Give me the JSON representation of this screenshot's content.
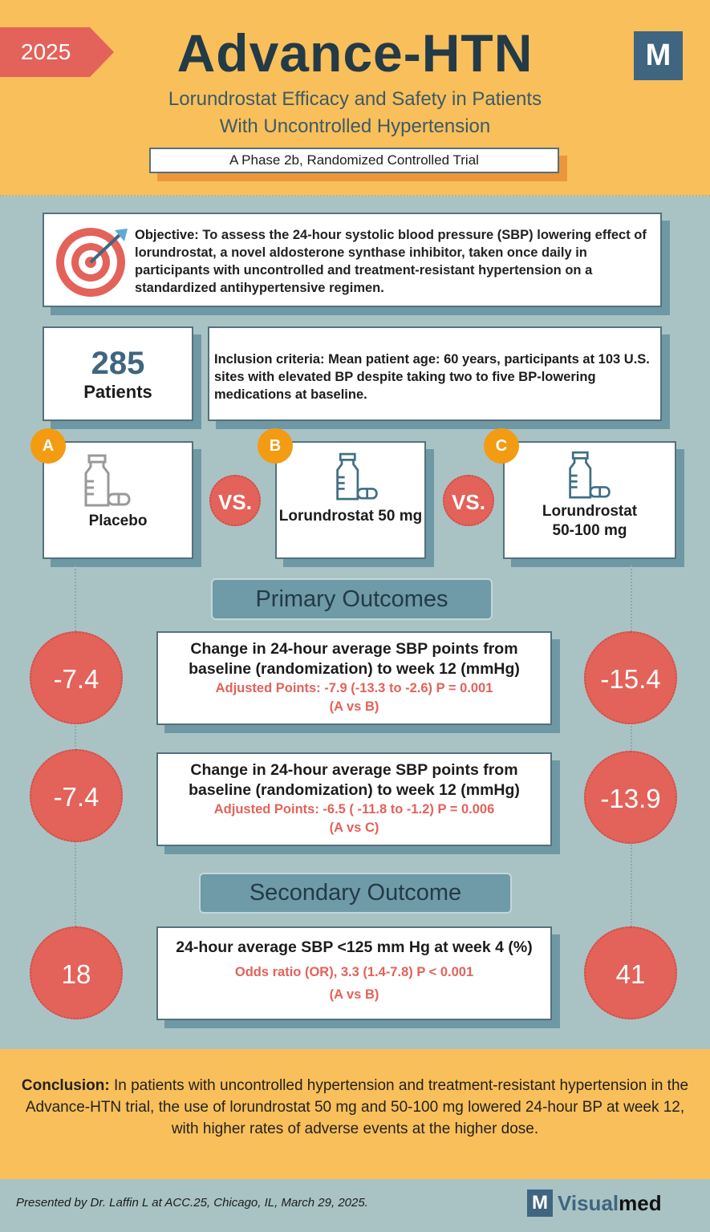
{
  "header": {
    "year": "2025",
    "title": "Advance-HTN",
    "subtitle_line1": "Lorundrostat Efficacy and Safety in Patients",
    "subtitle_line2": "With Uncontrolled Hypertension",
    "trial_type": "A Phase 2b, Randomized Controlled Trial",
    "logo_letter": "M"
  },
  "objective": {
    "label": "Objective:",
    "text": "To assess the 24-hour systolic blood pressure (SBP) lowering effect of lorundrostat, a novel aldosterone synthase inhibitor, taken once daily in participants with uncontrolled and treatment-resistant hypertension on a standardized antihypertensive regimen.",
    "icon": "target-icon"
  },
  "patients": {
    "count": "285",
    "label": "Patients"
  },
  "inclusion": {
    "label": "Inclusion criteria:",
    "text": "Mean patient age: 60 years, participants at 103 U.S. sites with elevated BP despite taking two to five BP-lowering medications at baseline."
  },
  "arms": [
    {
      "badge": "A",
      "label": "Placebo",
      "icon": "medicine-bottle-icon"
    },
    {
      "badge": "B",
      "label": "Lorundrostat 50 mg",
      "icon": "medicine-bottle-icon"
    },
    {
      "badge": "C",
      "label": "Lorundrostat 50-100 mg",
      "icon": "medicine-bottle-icon"
    }
  ],
  "vs_label": "VS.",
  "primary": {
    "title": "Primary Outcomes",
    "items": [
      {
        "left": "-7.4",
        "right": "-15.4",
        "heading": "Change in 24-hour average SBP points from baseline (randomization) to week 12 (mmHg)",
        "stat": "Adjusted Points: -7.9 (-13.3 to -2.6) P = 0.001",
        "compare": "(A vs B)"
      },
      {
        "left": "-7.4",
        "right": "-13.9",
        "heading": "Change in 24-hour average SBP points from baseline (randomization) to week 12 (mmHg)",
        "stat": "Adjusted Points: -6.5 ( -11.8 to -1.2) P = 0.006",
        "compare": "(A vs C)"
      }
    ]
  },
  "secondary": {
    "title": "Secondary Outcome",
    "item": {
      "left": "18",
      "right": "41",
      "heading": "24-hour average SBP <125 mm Hg at week 4 (%)",
      "stat": "Odds ratio (OR), 3.3 (1.4-7.8) P < 0.001",
      "compare": "(A vs B)"
    }
  },
  "conclusion": {
    "label": "Conclusion:",
    "text": "In patients with uncontrolled hypertension and treatment-resistant hypertension in the Advance-HTN trial, the use of lorundrostat 50 mg and 50-100 mg lowered 24-hour BP at week 12, with higher rates of adverse events at the higher dose."
  },
  "footer": {
    "presented": "Presented by Dr. Laffin L at ACC.25, Chicago, IL, March 29, 2025.",
    "brand_logo": "M",
    "brand_part1": "Visual",
    "brand_part2": "med"
  },
  "colors": {
    "yellow": "#f9bf5a",
    "teal": "#a9c3c5",
    "red": "#e3625a",
    "orange": "#f29b13",
    "navy": "#233a47"
  }
}
